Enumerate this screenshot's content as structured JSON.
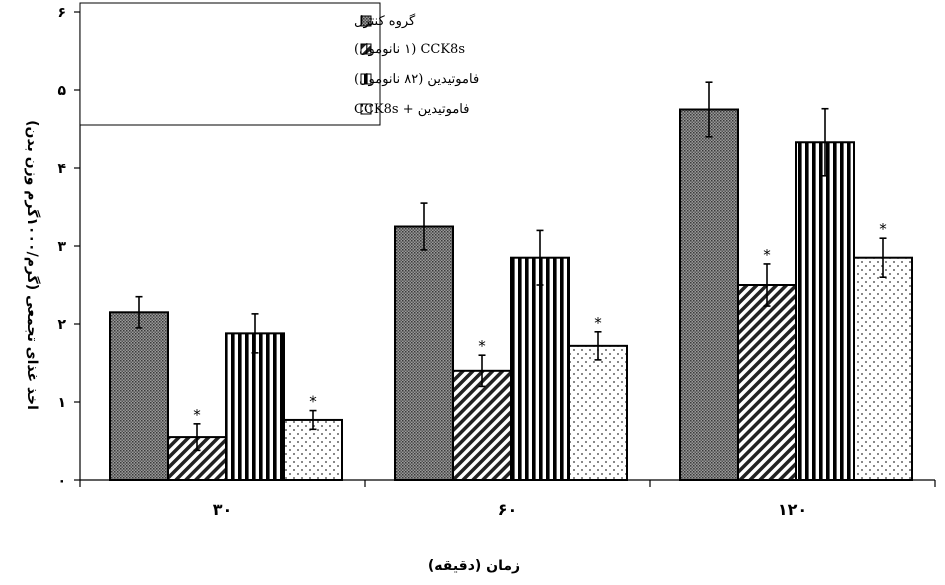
{
  "chart_data": {
    "type": "bar",
    "categories": [
      "۳۰",
      "۶۰",
      "۱۲۰"
    ],
    "xlabel": "زمان (دقیقه)",
    "ylabel": "اخذ غذای تجمعی (گرم/۱۰۰۰گرم وزن بدن)",
    "ylim": [
      0,
      6
    ],
    "yticks": [
      0,
      1,
      2,
      3,
      4,
      5,
      6
    ],
    "ytick_labels": [
      "۰",
      "۱",
      "۲",
      "۳",
      "۴",
      "۵",
      "۶"
    ],
    "grid": false,
    "legend_position": "top-left",
    "significance_marker": "*",
    "series": [
      {
        "name": "گروه کنترل",
        "pattern": "crosshatch",
        "values": [
          2.15,
          3.25,
          4.75
        ],
        "errors": [
          0.2,
          0.3,
          0.35
        ],
        "significant": [
          false,
          false,
          false
        ]
      },
      {
        "name": "CCK8s (۱ نانومول)",
        "pattern": "diagonal",
        "values": [
          0.55,
          1.4,
          2.5
        ],
        "errors": [
          0.17,
          0.2,
          0.27
        ],
        "significant": [
          true,
          true,
          true
        ]
      },
      {
        "name": "فاموتیدین (۸۲ نانومول)",
        "pattern": "vertical",
        "values": [
          1.88,
          2.85,
          4.33
        ],
        "errors": [
          0.25,
          0.35,
          0.43
        ],
        "significant": [
          false,
          false,
          false
        ]
      },
      {
        "name": "فاموتیدین + CCK8s",
        "pattern": "dots",
        "values": [
          0.77,
          1.72,
          2.85
        ],
        "errors": [
          0.12,
          0.18,
          0.25
        ],
        "significant": [
          true,
          true,
          true
        ]
      }
    ]
  }
}
